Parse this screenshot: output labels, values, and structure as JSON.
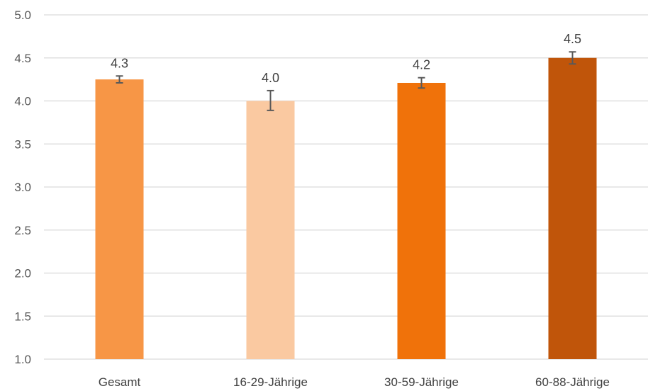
{
  "chart_data": {
    "type": "bar",
    "title": "",
    "xlabel": "",
    "ylabel": "",
    "ylim": [
      1.0,
      5.0
    ],
    "yticks": [
      "1.0",
      "1.5",
      "2.0",
      "2.5",
      "3.0",
      "3.5",
      "4.0",
      "4.5",
      "5.0"
    ],
    "grid": true,
    "legend": "none",
    "categories": [
      "Gesamt",
      "16-29-Jährige",
      "30-59-Jährige",
      "60-88-Jährige"
    ],
    "values": [
      4.25,
      4.0,
      4.21,
      4.5
    ],
    "data_labels": [
      "4.3",
      "4.0",
      "4.2",
      "4.5"
    ],
    "error_bars": [
      {
        "low": 4.21,
        "high": 4.29
      },
      {
        "low": 3.89,
        "high": 4.12
      },
      {
        "low": 4.15,
        "high": 4.27
      },
      {
        "low": 4.43,
        "high": 4.57
      }
    ],
    "colors": [
      "#f79646",
      "#fac9a1",
      "#f0720a",
      "#c0550a"
    ],
    "gridline_color": "#d9d9d9",
    "errorbar_color": "#595959"
  }
}
